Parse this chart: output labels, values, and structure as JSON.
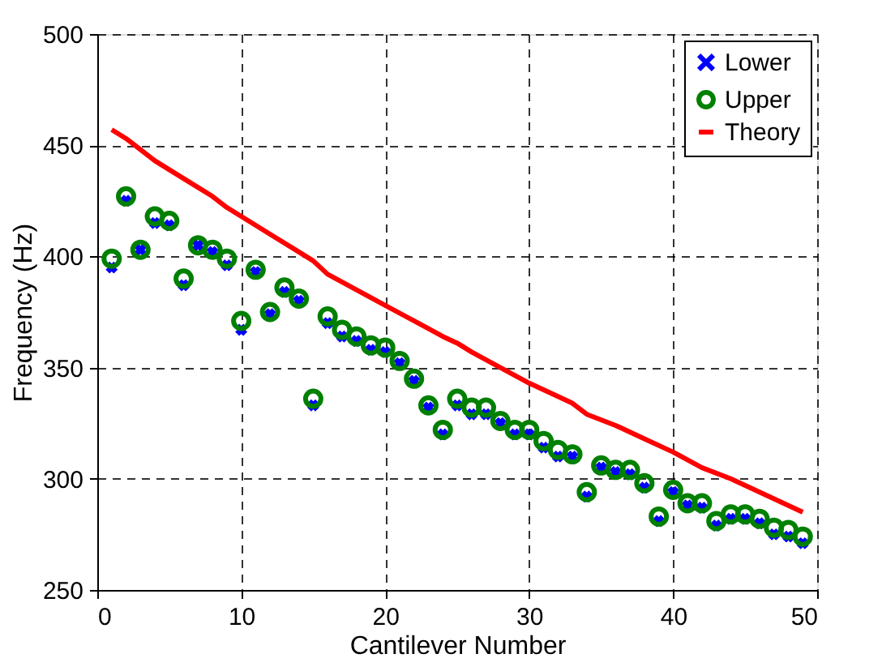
{
  "chart_data": {
    "type": "scatter",
    "xlabel": "Cantilever Number",
    "ylabel": "Frequency (Hz)",
    "xlim": [
      0,
      50
    ],
    "ylim": [
      250,
      500
    ],
    "xticks": [
      0,
      10,
      20,
      30,
      40,
      50
    ],
    "yticks": [
      250,
      300,
      350,
      400,
      450,
      500
    ],
    "grid": true,
    "legend": "top right",
    "x": [
      1,
      2,
      3,
      4,
      5,
      6,
      7,
      8,
      9,
      10,
      11,
      12,
      13,
      14,
      15,
      16,
      17,
      18,
      19,
      20,
      21,
      22,
      23,
      24,
      25,
      26,
      27,
      28,
      29,
      30,
      31,
      32,
      33,
      34,
      35,
      36,
      37,
      38,
      39,
      40,
      41,
      42,
      43,
      44,
      45,
      46,
      47,
      48,
      49
    ],
    "series": [
      {
        "name": "Lower",
        "marker": "cross",
        "color": "#0000ff",
        "values": [
          395,
          425,
          403,
          415,
          414,
          387,
          405,
          402,
          396,
          367,
          393,
          374,
          384,
          380,
          333,
          370,
          364,
          362,
          358,
          357,
          352,
          344,
          332,
          320,
          333,
          329,
          329,
          325,
          320,
          320,
          314,
          310,
          310,
          292,
          305,
          303,
          302,
          296,
          281,
          294,
          288,
          287,
          279,
          282,
          282,
          280,
          275,
          274,
          271
        ]
      },
      {
        "name": "Upper",
        "marker": "circle",
        "color": "#008000",
        "values": [
          399,
          427,
          403,
          418,
          416,
          390,
          405,
          403,
          399,
          371,
          394,
          375,
          386,
          381,
          336,
          373,
          367,
          364,
          360,
          359,
          353,
          345,
          333,
          322,
          336,
          332,
          332,
          326,
          322,
          322,
          317,
          313,
          311,
          294,
          306,
          304,
          304,
          298,
          283,
          295,
          289,
          289,
          281,
          284,
          284,
          282,
          278,
          277,
          274
        ]
      },
      {
        "name": "Theory",
        "type": "line",
        "marker": "none",
        "line_style": "solid",
        "color": "#ff0000",
        "x": [
          1,
          2,
          4,
          6,
          8,
          9,
          10,
          12,
          14,
          15,
          16,
          18,
          20,
          22,
          24,
          25,
          26,
          28,
          30,
          32,
          33,
          34,
          36,
          38,
          40,
          42,
          44,
          46,
          48,
          49
        ],
        "values": [
          457,
          453,
          443,
          435,
          427,
          422,
          418,
          410,
          402,
          398,
          392,
          385,
          378,
          371,
          364,
          361,
          357,
          350,
          343,
          337,
          334,
          329,
          324,
          318,
          312,
          305,
          300,
          294,
          288,
          285
        ]
      }
    ]
  }
}
